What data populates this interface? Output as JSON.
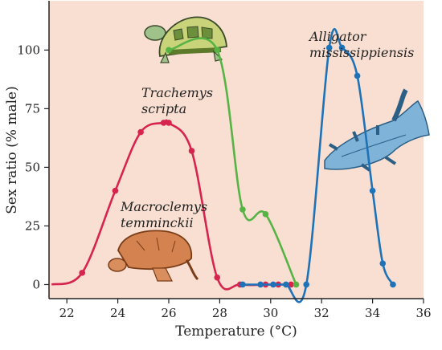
{
  "chart_data": {
    "type": "line",
    "xlabel": "Temperature (°C)",
    "ylabel": "Sex ratio (% male)",
    "xlim": [
      21.3,
      36
    ],
    "ylim": [
      -6,
      121
    ],
    "xticks": [
      22,
      24,
      26,
      28,
      30,
      32,
      34,
      36
    ],
    "yticks": [
      0,
      25,
      50,
      75,
      100
    ],
    "grid": false,
    "background": "#f8dfd2",
    "series": [
      {
        "name": "Macroclemys temminckii",
        "label_lines": [
          "Macroclemys",
          "temminckii"
        ],
        "color": "#d6244e",
        "points": [
          [
            21.4,
            0
          ],
          [
            22.6,
            5
          ],
          [
            23.9,
            40
          ],
          [
            24.9,
            65
          ],
          [
            25.8,
            69
          ],
          [
            26.0,
            69
          ],
          [
            26.9,
            57
          ],
          [
            27.9,
            3
          ],
          [
            28.8,
            0
          ],
          [
            29.8,
            0
          ],
          [
            30.3,
            0
          ],
          [
            30.8,
            0
          ]
        ]
      },
      {
        "name": "Trachemys scripta",
        "label_lines": [
          "Trachemys",
          "scripta"
        ],
        "color": "#56b344",
        "points": [
          [
            26.0,
            100
          ],
          [
            27.9,
            100
          ],
          [
            28.9,
            32
          ],
          [
            29.8,
            30
          ],
          [
            31.0,
            0
          ]
        ]
      },
      {
        "name": "Alligator mississippiensis",
        "label_lines": [
          "Alligator",
          "mississippiensis"
        ],
        "color": "#1e72b8",
        "points": [
          [
            28.9,
            0
          ],
          [
            29.6,
            0
          ],
          [
            30.1,
            0
          ],
          [
            30.6,
            0
          ],
          [
            31.4,
            0
          ],
          [
            32.3,
            101
          ],
          [
            32.8,
            101
          ],
          [
            33.4,
            89
          ],
          [
            34.0,
            40
          ],
          [
            34.4,
            9
          ],
          [
            34.8,
            0
          ]
        ]
      }
    ]
  }
}
